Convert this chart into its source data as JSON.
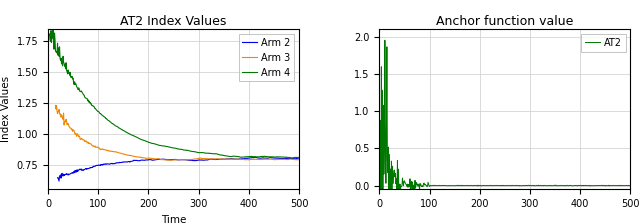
{
  "title1": "AT2 Index Values",
  "title2": "Anchor function value",
  "xlabel1": "Time",
  "ylabel1": "Index Values",
  "xlim1": [
    0,
    500
  ],
  "xlim2": [
    0,
    500
  ],
  "ylim1": [
    0.55,
    1.85
  ],
  "ylim2": [
    -0.05,
    2.1
  ],
  "arm2_color": "#0000EE",
  "arm3_color": "#EE8800",
  "arm4_color": "#007700",
  "anchor_color": "#007700",
  "legend1_labels": [
    "Arm 2",
    "Arm 3",
    "Arm 4"
  ],
  "legend2_labels": [
    "AT2"
  ],
  "background_color": "#ffffff",
  "grid_color": "#cccccc",
  "xticks1": [
    0,
    100,
    200,
    300,
    400,
    500
  ],
  "yticks1": [
    0.75,
    1.0,
    1.25,
    1.5,
    1.75
  ],
  "xticks2": [
    0,
    100,
    200,
    300,
    400,
    500
  ],
  "yticks2": [
    0.0,
    0.5,
    1.0,
    1.5,
    2.0
  ],
  "title_fontsize": 9,
  "tick_fontsize": 7,
  "label_fontsize": 7.5,
  "legend_fontsize": 7
}
